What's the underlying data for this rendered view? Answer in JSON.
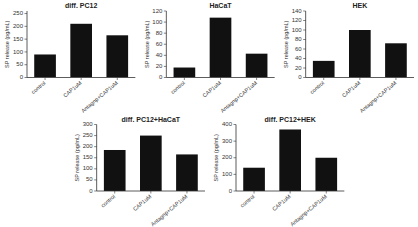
{
  "chart_data": [
    {
      "type": "bar",
      "title": "diff. PC12",
      "ylabel": "SP release (pg/mL)",
      "categories": [
        "control",
        "CAP1uM",
        "Antagnp+CAP1uM"
      ],
      "values": [
        90,
        210,
        165
      ],
      "color": "#111111",
      "ylim": [
        0,
        260
      ],
      "yticks": [
        0,
        50,
        100,
        150,
        200,
        250
      ]
    },
    {
      "type": "bar",
      "title": "HaCaT",
      "ylabel": "SP release (pg/mL)",
      "categories": [
        "control",
        "CAP1uM",
        "Antagnp+CAP1uM"
      ],
      "values": [
        18,
        108,
        43
      ],
      "color": "#111111",
      "ylim": [
        0,
        120
      ],
      "yticks": [
        0,
        20,
        40,
        60,
        80,
        100,
        120
      ]
    },
    {
      "type": "bar",
      "title": "HEK",
      "ylabel": "SP release (pg/mL)",
      "categories": [
        "control",
        "CAP1uM",
        "Antagnp+CAP1uM"
      ],
      "values": [
        35,
        100,
        72
      ],
      "color": "#111111",
      "ylim": [
        0,
        140
      ],
      "yticks": [
        0,
        20,
        40,
        60,
        80,
        100,
        120,
        140
      ]
    },
    {
      "type": "bar",
      "title": "diff. PC12+HaCaT",
      "ylabel": "SP release (pg/mL)",
      "categories": [
        "control",
        "CAP1uM",
        "Antagnp+CAP1uM"
      ],
      "values": [
        185,
        250,
        165
      ],
      "color": "#111111",
      "ylim": [
        0,
        300
      ],
      "yticks": [
        0,
        50,
        100,
        150,
        200,
        250,
        300
      ]
    },
    {
      "type": "bar",
      "title": "diff. PC12+HEK",
      "ylabel": "SP release (pg/mL)",
      "categories": [
        "control",
        "CAP1uM",
        "Antagnp+CAP1uM"
      ],
      "values": [
        140,
        370,
        200
      ],
      "color": "#111111",
      "ylim": [
        0,
        400
      ],
      "yticks": [
        0,
        100,
        200,
        300,
        400
      ]
    }
  ]
}
